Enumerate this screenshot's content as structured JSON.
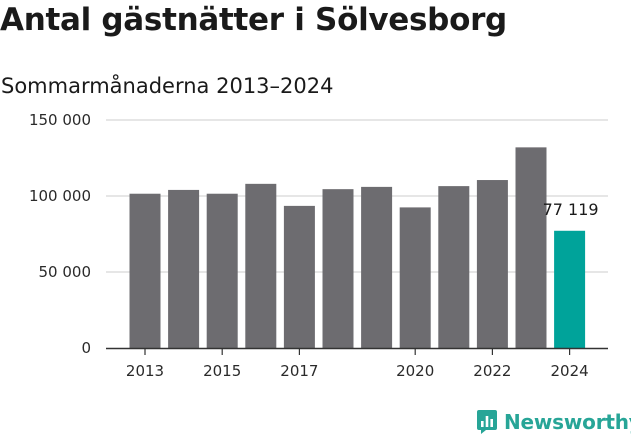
{
  "title": "Antal gästnätter i Sölvesborg",
  "subtitle": "Sommarmånaderna 2013–2024",
  "brand": "Newsworthy",
  "colors": {
    "bar": "#6d6c70",
    "highlight": "#00a39a",
    "grid": "#dddddd",
    "axis": "#333333",
    "brand": "#27a597"
  },
  "chart_data": {
    "type": "bar",
    "title": "Antal gästnätter i Sölvesborg",
    "subtitle": "Sommarmånaderna 2013–2024",
    "categories": [
      "2013",
      "2014",
      "2015",
      "2016",
      "2017",
      "2018",
      "2019",
      "2020",
      "2021",
      "2022",
      "2023",
      "2024"
    ],
    "values": [
      101500,
      104000,
      101500,
      108000,
      93500,
      104500,
      106000,
      92500,
      106500,
      110500,
      132000,
      77119
    ],
    "highlight_index": 11,
    "data_label": "77 119",
    "xtick_labels": [
      "2013",
      "2015",
      "2017",
      "2020",
      "2022",
      "2024"
    ],
    "yticks": [
      0,
      50000,
      100000,
      150000
    ],
    "ytick_labels": [
      "0",
      "50 000",
      "100 000",
      "150 000"
    ],
    "ylim": [
      0,
      150000
    ],
    "grid": true,
    "xlabel": "",
    "ylabel": ""
  }
}
